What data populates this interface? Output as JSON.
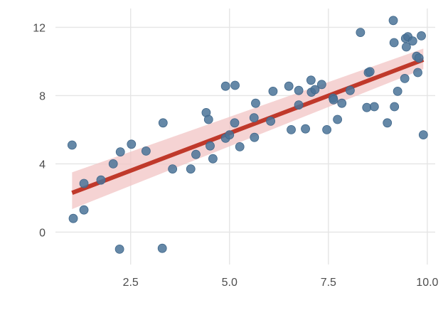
{
  "chart_data": {
    "type": "scatter",
    "title": "",
    "xlabel": "",
    "ylabel": "",
    "xlim": [
      0.6,
      10.2
    ],
    "ylim": [
      -1.9,
      13.1
    ],
    "grid": true,
    "x_ticks": [
      2.5,
      5.0,
      7.5,
      10.0
    ],
    "x_tick_labels": [
      "2.5",
      "5.0",
      "7.5",
      "10.0"
    ],
    "y_ticks": [
      0,
      4,
      8,
      12
    ],
    "y_tick_labels": [
      "0",
      "4",
      "8",
      "12"
    ],
    "colors": {
      "points": "#4a7398",
      "trend_line": "#c0392b",
      "confidence_band": "#f2c4c4",
      "grid": "#e5e5e5",
      "tick_text": "#4d4d4d"
    },
    "points": [
      {
        "x": 1.02,
        "y": 5.1
      },
      {
        "x": 1.05,
        "y": 0.8
      },
      {
        "x": 1.32,
        "y": 2.85
      },
      {
        "x": 1.32,
        "y": 1.3
      },
      {
        "x": 1.75,
        "y": 3.05
      },
      {
        "x": 2.06,
        "y": 4.0
      },
      {
        "x": 2.24,
        "y": 4.7
      },
      {
        "x": 2.22,
        "y": -1.0
      },
      {
        "x": 2.52,
        "y": 5.15
      },
      {
        "x": 2.89,
        "y": 4.75
      },
      {
        "x": 3.32,
        "y": 6.4
      },
      {
        "x": 3.3,
        "y": -0.95
      },
      {
        "x": 3.56,
        "y": 3.7
      },
      {
        "x": 4.02,
        "y": 3.7
      },
      {
        "x": 4.15,
        "y": 4.55
      },
      {
        "x": 4.41,
        "y": 7.0
      },
      {
        "x": 4.47,
        "y": 6.6
      },
      {
        "x": 4.51,
        "y": 5.05
      },
      {
        "x": 4.58,
        "y": 4.3
      },
      {
        "x": 4.9,
        "y": 8.55
      },
      {
        "x": 4.9,
        "y": 5.5
      },
      {
        "x": 5.0,
        "y": 5.7
      },
      {
        "x": 5.13,
        "y": 6.4
      },
      {
        "x": 5.14,
        "y": 8.6
      },
      {
        "x": 5.26,
        "y": 5.0
      },
      {
        "x": 5.62,
        "y": 6.7
      },
      {
        "x": 5.63,
        "y": 5.55
      },
      {
        "x": 5.66,
        "y": 7.55
      },
      {
        "x": 6.04,
        "y": 6.5
      },
      {
        "x": 6.1,
        "y": 8.25
      },
      {
        "x": 6.5,
        "y": 8.55
      },
      {
        "x": 6.56,
        "y": 6.0
      },
      {
        "x": 6.75,
        "y": 7.45
      },
      {
        "x": 6.75,
        "y": 8.3
      },
      {
        "x": 6.92,
        "y": 6.05
      },
      {
        "x": 7.06,
        "y": 8.9
      },
      {
        "x": 7.07,
        "y": 8.2
      },
      {
        "x": 7.16,
        "y": 8.35
      },
      {
        "x": 7.33,
        "y": 8.65
      },
      {
        "x": 7.46,
        "y": 6.0
      },
      {
        "x": 7.62,
        "y": 7.85
      },
      {
        "x": 7.63,
        "y": 7.75
      },
      {
        "x": 7.73,
        "y": 6.6
      },
      {
        "x": 7.84,
        "y": 7.55
      },
      {
        "x": 8.05,
        "y": 8.3
      },
      {
        "x": 8.31,
        "y": 11.7
      },
      {
        "x": 8.47,
        "y": 7.3
      },
      {
        "x": 8.51,
        "y": 9.35
      },
      {
        "x": 8.55,
        "y": 9.4
      },
      {
        "x": 8.66,
        "y": 7.35
      },
      {
        "x": 8.99,
        "y": 6.4
      },
      {
        "x": 9.14,
        "y": 12.4
      },
      {
        "x": 9.16,
        "y": 11.1
      },
      {
        "x": 9.17,
        "y": 7.35
      },
      {
        "x": 9.25,
        "y": 8.25
      },
      {
        "x": 9.43,
        "y": 9.0
      },
      {
        "x": 9.45,
        "y": 11.35
      },
      {
        "x": 9.47,
        "y": 10.85
      },
      {
        "x": 9.51,
        "y": 11.45
      },
      {
        "x": 9.63,
        "y": 11.2
      },
      {
        "x": 9.73,
        "y": 10.3
      },
      {
        "x": 9.76,
        "y": 9.35
      },
      {
        "x": 9.79,
        "y": 10.2
      },
      {
        "x": 9.85,
        "y": 11.5
      },
      {
        "x": 9.9,
        "y": 5.7
      }
    ],
    "trend": {
      "x": [
        1.02,
        9.9
      ],
      "y": [
        2.3,
        10.1
      ],
      "band_lower": [
        1.35,
        9.55
      ],
      "band_upper": [
        3.5,
        10.75
      ]
    }
  }
}
